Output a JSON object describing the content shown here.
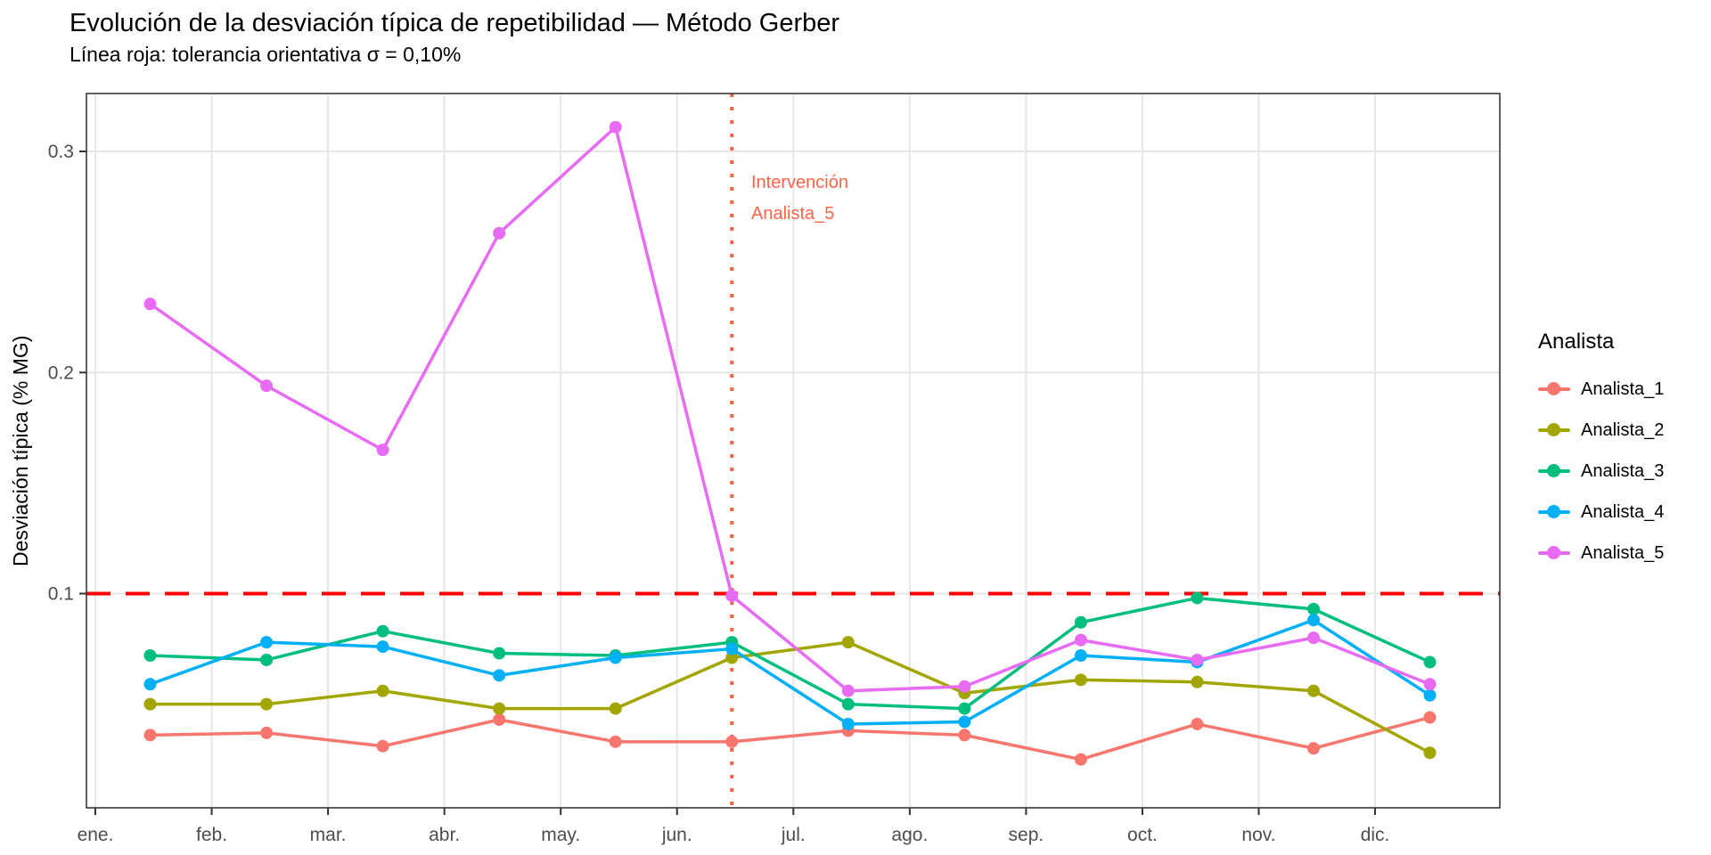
{
  "title": "Evolución de la desviación típica de repetibilidad — Método Gerber",
  "subtitle": "Línea roja: tolerancia orientativa σ = 0,10%",
  "chart_data": {
    "type": "line",
    "title": "Evolución de la desviación típica de repetibilidad — Método Gerber",
    "subtitle": "Línea roja: tolerancia orientativa σ = 0,10%",
    "xlabel": "",
    "ylabel": "Desviación típica (% MG)",
    "categories": [
      "ene.",
      "feb.",
      "mar.",
      "abr.",
      "may.",
      "jun.",
      "jul.",
      "ago.",
      "sep.",
      "oct.",
      "nov.",
      "dic."
    ],
    "y_ticks": [
      0.1,
      0.2,
      0.3
    ],
    "y_tick_labels": [
      "0.1",
      "0.2",
      "0.3"
    ],
    "ylim": [
      0.003,
      0.326
    ],
    "grid": "major-only",
    "legend_position": "right",
    "legend_title": "Analista",
    "series": [
      {
        "name": "Analista_1",
        "color": "#F8766D",
        "values": [
          0.036,
          0.037,
          0.031,
          0.043,
          0.033,
          0.033,
          0.038,
          0.036,
          0.025,
          0.041,
          0.03,
          0.044
        ]
      },
      {
        "name": "Analista_2",
        "color": "#A3A500",
        "values": [
          0.05,
          0.05,
          0.056,
          0.048,
          0.048,
          0.071,
          0.078,
          0.055,
          0.061,
          0.06,
          0.056,
          0.028
        ]
      },
      {
        "name": "Analista_3",
        "color": "#00BF7D",
        "values": [
          0.072,
          0.07,
          0.083,
          0.073,
          0.072,
          0.078,
          0.05,
          0.048,
          0.087,
          0.098,
          0.093,
          0.069
        ]
      },
      {
        "name": "Analista_4",
        "color": "#00B0F6",
        "values": [
          0.059,
          0.078,
          0.076,
          0.063,
          0.071,
          0.075,
          0.041,
          0.042,
          0.072,
          0.069,
          0.088,
          0.054
        ]
      },
      {
        "name": "Analista_5",
        "color": "#E76BF3",
        "values": [
          0.231,
          0.194,
          0.165,
          0.263,
          0.311,
          0.099,
          0.056,
          0.058,
          0.079,
          0.07,
          0.08,
          0.059
        ]
      }
    ],
    "reference_line": {
      "value": 0.1,
      "color": "#FF0000",
      "style": "dashed"
    },
    "event_line": {
      "month_index": 5,
      "color": "#FF6347",
      "style": "dotted",
      "label_lines": [
        "Intervención",
        "Analista_5"
      ]
    }
  }
}
